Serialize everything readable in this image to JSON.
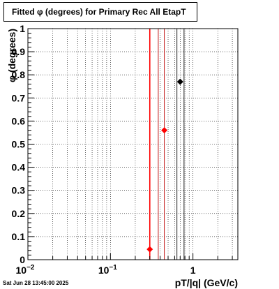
{
  "title": "Fitted φ (degrees) for Primary Rec All EtapT",
  "timestamp": "Sat Jun 28 13:45:00 2025",
  "chart_data": {
    "type": "scatter",
    "title": "Fitted φ (degrees) for Primary Rec All EtapT",
    "xlabel": "pT/|q| (GeV/c)",
    "ylabel": "φ (degrees)",
    "x_scale": "log",
    "xlim": [
      0.01,
      3.5
    ],
    "ylim": [
      0,
      1
    ],
    "grid": true,
    "x_ticks": [
      {
        "value": 0.01,
        "base": "10",
        "exp": "−2"
      },
      {
        "value": 0.1,
        "base": "10",
        "exp": "−1"
      },
      {
        "value": 1,
        "base": "1",
        "exp": ""
      }
    ],
    "y_ticks": [
      "0",
      "0.1",
      "0.2",
      "0.3",
      "0.4",
      "0.5",
      "0.6",
      "0.7",
      "0.8",
      "0.9",
      "1"
    ],
    "series": [
      {
        "color": "#ff0000",
        "points": [
          {
            "x": 0.3,
            "y": 0.045
          },
          {
            "x": 0.45,
            "y": 0.56
          }
        ]
      },
      {
        "color": "#000000",
        "points": [
          {
            "x": 0.7,
            "y": 0.77
          }
        ]
      }
    ],
    "vertical_lines": [
      {
        "x": 0.3,
        "color": "#ff0000",
        "weight": "bold"
      },
      {
        "x": 0.38,
        "color": "#bb0000",
        "weight": "thin"
      },
      {
        "x": 0.45,
        "color": "#bb0000",
        "weight": "thin"
      },
      {
        "x": 0.64,
        "color": "#000000",
        "weight": "thin"
      },
      {
        "x": 0.78,
        "color": "#000000",
        "weight": "thin"
      }
    ]
  }
}
